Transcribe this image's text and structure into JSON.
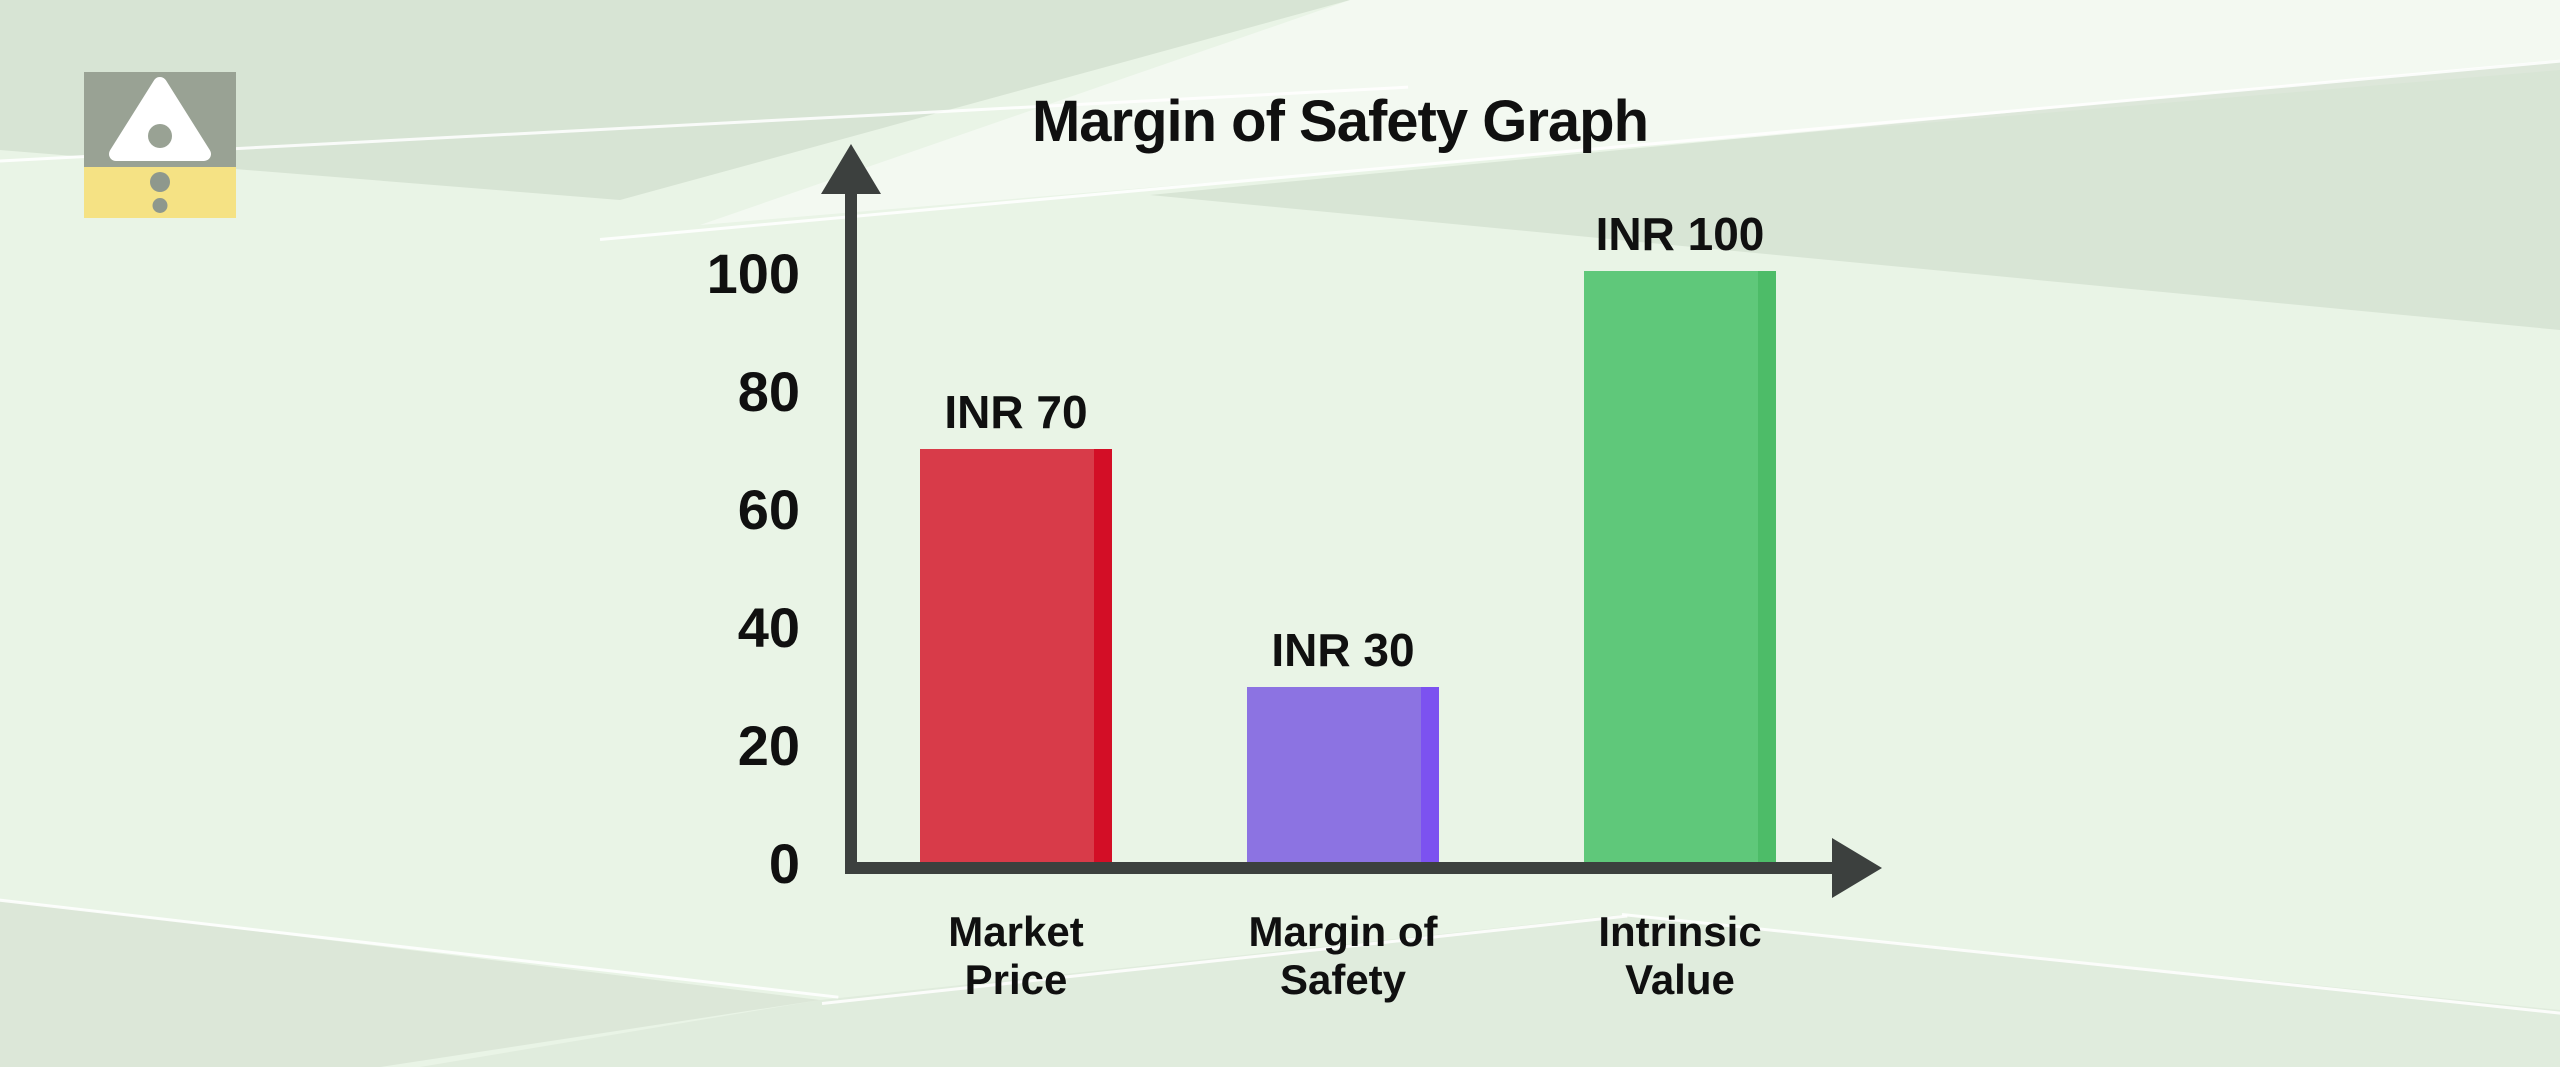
{
  "page": {
    "background_color": "#e9f4e6",
    "text_color": "#101010"
  },
  "logo": {
    "icon": "triangle-with-dots-logo-icon",
    "top_color": "#99a294",
    "bottom_color": "#f5e284",
    "mark_color": "#ffffff",
    "dot_color": "#8e988d"
  },
  "chart_data": {
    "type": "bar",
    "title": "Margin of Safety Graph",
    "categories": [
      "Market Price",
      "Margin of Safety",
      "Intrinsic Value"
    ],
    "categories_display": [
      "Market\nPrice",
      "Margin of\nSafety",
      "Intrinsic\nValue"
    ],
    "values": [
      70,
      30,
      100
    ],
    "bar_labels": [
      "INR 70",
      "INR 30",
      "INR 100"
    ],
    "bar_colors": [
      "#d83b49",
      "#8c73e2",
      "#5fc87a"
    ],
    "bar_edge_colors": [
      "#d30e26",
      "#7c52f0",
      "#4dbc68"
    ],
    "currency": "INR",
    "yticks": [
      0,
      20,
      40,
      60,
      80,
      100
    ],
    "ylim": [
      0,
      100
    ],
    "xlabel": "",
    "ylabel": "",
    "grid": false,
    "legend": "none",
    "axis_color": "#3c403e",
    "axis_style": "arrow-ended"
  }
}
